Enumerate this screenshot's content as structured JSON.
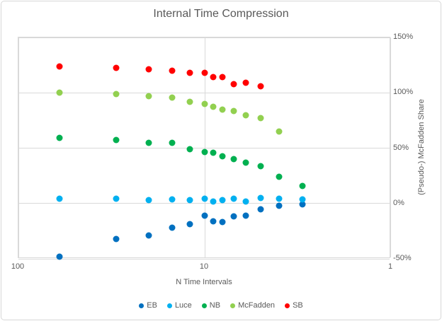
{
  "chart_data": {
    "type": "scatter",
    "title": "Internal Time Compression",
    "xlabel": "N Time Intervals",
    "ylabel_right": "(Pseudo-) McFadden Share",
    "x_scale": "log10-reversed",
    "x_axis_range": [
      100,
      1
    ],
    "x_tick_values": [
      100,
      10,
      1
    ],
    "x_tick_labels": [
      "100",
      "10",
      "1"
    ],
    "y_axis_range_pct": [
      -50,
      150
    ],
    "y_tick_values_pct": [
      150,
      100,
      50,
      0,
      -50
    ],
    "y_tick_labels": [
      "150%",
      "100%",
      "50%",
      "0%",
      "-50%"
    ],
    "grid": true,
    "legend_position": "bottom",
    "x": [
      60,
      30,
      20,
      15,
      12,
      10,
      9,
      8,
      7,
      6,
      5,
      4,
      3
    ],
    "series": [
      {
        "name": "EB",
        "color": "#0070C0",
        "values_pct": [
          -48,
          -32,
          -29,
          -22,
          -19,
          -11,
          -16,
          -16.5,
          -11.5,
          -11,
          -5.5,
          -2,
          -1
        ]
      },
      {
        "name": "Luce",
        "color": "#00B0F0",
        "values_pct": [
          4,
          4.5,
          3,
          3.5,
          3,
          4.5,
          1.5,
          3,
          4,
          2,
          5,
          4.5,
          3.5
        ]
      },
      {
        "name": "NB",
        "color": "#00B050",
        "values_pct": [
          59.5,
          57.5,
          54.5,
          54.5,
          49,
          46.5,
          46,
          42.5,
          40,
          37,
          33.5,
          24,
          16
        ]
      },
      {
        "name": "McFadden",
        "color": "#92D050",
        "values_pct": [
          100,
          99,
          97,
          96,
          92,
          90,
          87.5,
          85,
          83.5,
          80,
          77,
          65,
          null
        ]
      },
      {
        "name": "SB",
        "color": "#FF0000",
        "values_pct": [
          124,
          122.5,
          121,
          120,
          118,
          118,
          114.5,
          114.5,
          108,
          109,
          106,
          null,
          null
        ]
      }
    ]
  },
  "colors": {
    "text": "#595959",
    "grid": "#d9d9d9",
    "background": "#ffffff"
  }
}
